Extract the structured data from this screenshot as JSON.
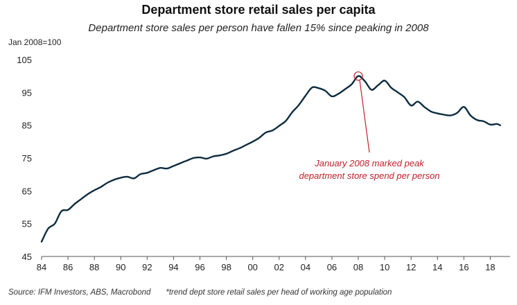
{
  "chart_data": {
    "type": "line",
    "title": "Department store retail sales per capita",
    "subtitle": "Department store sales per person have fallen 15% since peaking in 2008",
    "ylabel": "Jan 2008=100",
    "xlabel": "",
    "ylim": [
      45,
      105
    ],
    "xlim": [
      1984,
      2019.5
    ],
    "yticks": [
      45,
      55,
      65,
      75,
      85,
      95,
      105
    ],
    "xticks": [
      {
        "value": 1984,
        "label": "84"
      },
      {
        "value": 1986,
        "label": "86"
      },
      {
        "value": 1988,
        "label": "88"
      },
      {
        "value": 1990,
        "label": "90"
      },
      {
        "value": 1992,
        "label": "92"
      },
      {
        "value": 1994,
        "label": "94"
      },
      {
        "value": 1996,
        "label": "96"
      },
      {
        "value": 1998,
        "label": "98"
      },
      {
        "value": 2000,
        "label": "00"
      },
      {
        "value": 2002,
        "label": "02"
      },
      {
        "value": 2004,
        "label": "04"
      },
      {
        "value": 2006,
        "label": "06"
      },
      {
        "value": 2008,
        "label": "08"
      },
      {
        "value": 2010,
        "label": "10"
      },
      {
        "value": 2012,
        "label": "12"
      },
      {
        "value": 2014,
        "label": "14"
      },
      {
        "value": 2016,
        "label": "16"
      },
      {
        "value": 2018,
        "label": "18"
      }
    ],
    "series": [
      {
        "name": "Department store retail sales per capita",
        "color": "#0d2b3e",
        "x": [
          1984.0,
          1984.5,
          1985.0,
          1985.5,
          1986.0,
          1986.5,
          1987.0,
          1987.5,
          1988.0,
          1988.5,
          1989.0,
          1989.5,
          1990.0,
          1990.5,
          1991.0,
          1991.5,
          1992.0,
          1992.5,
          1993.0,
          1993.5,
          1994.0,
          1994.5,
          1995.0,
          1995.5,
          1996.0,
          1996.5,
          1997.0,
          1997.5,
          1998.0,
          1998.5,
          1999.0,
          1999.5,
          2000.0,
          2000.5,
          2001.0,
          2001.5,
          2002.0,
          2002.5,
          2003.0,
          2003.5,
          2004.0,
          2004.5,
          2005.0,
          2005.5,
          2006.0,
          2006.5,
          2007.0,
          2007.5,
          2008.0,
          2008.5,
          2009.0,
          2009.5,
          2010.0,
          2010.5,
          2011.0,
          2011.5,
          2012.0,
          2012.5,
          2013.0,
          2013.5,
          2014.0,
          2014.5,
          2015.0,
          2015.5,
          2016.0,
          2016.5,
          2017.0,
          2017.5,
          2018.0,
          2018.5,
          2018.75
        ],
        "values": [
          49.5,
          53.5,
          55.0,
          58.8,
          59.2,
          61.0,
          62.5,
          64.0,
          65.2,
          66.2,
          67.5,
          68.4,
          69.0,
          69.3,
          68.8,
          70.1,
          70.5,
          71.3,
          72.0,
          71.8,
          72.6,
          73.4,
          74.2,
          75.0,
          75.2,
          74.8,
          75.5,
          75.8,
          76.3,
          77.2,
          78.0,
          79.0,
          80.0,
          81.2,
          82.8,
          83.4,
          84.8,
          86.3,
          89.0,
          91.2,
          94.0,
          96.5,
          96.3,
          95.5,
          93.8,
          94.6,
          96.0,
          97.5,
          100.0,
          98.4,
          95.8,
          97.2,
          98.6,
          96.4,
          95.0,
          93.5,
          91.0,
          92.2,
          90.6,
          89.2,
          88.6,
          88.2,
          88.0,
          88.8,
          90.6,
          88.0,
          86.6,
          86.2,
          85.2,
          85.4,
          85.0
        ]
      }
    ],
    "annotation": {
      "x": 2008,
      "y": 100,
      "text_line1": "January 2008 marked peak",
      "text_line2": "department store spend per person",
      "color": "#c0202a"
    }
  },
  "footer": {
    "source": "Source: IFM Investors, ABS, Macrobond",
    "note": "*trend dept store retail sales per head of working age population"
  }
}
